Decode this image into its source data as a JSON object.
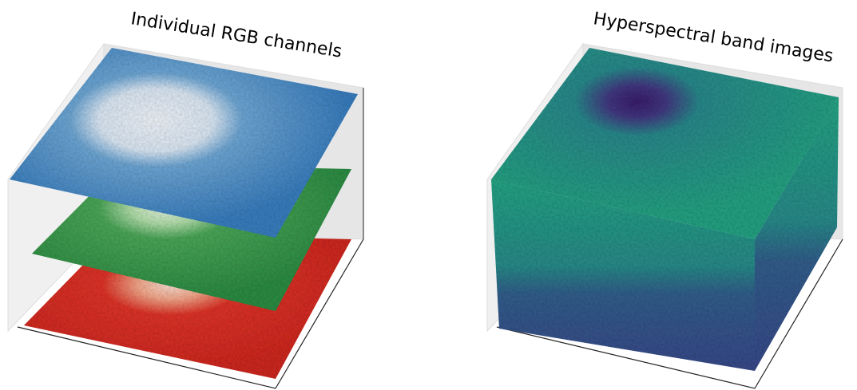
{
  "panels": [
    {
      "title": "Individual RGB channels"
    },
    {
      "title": "Hyperspectral band images"
    }
  ]
}
